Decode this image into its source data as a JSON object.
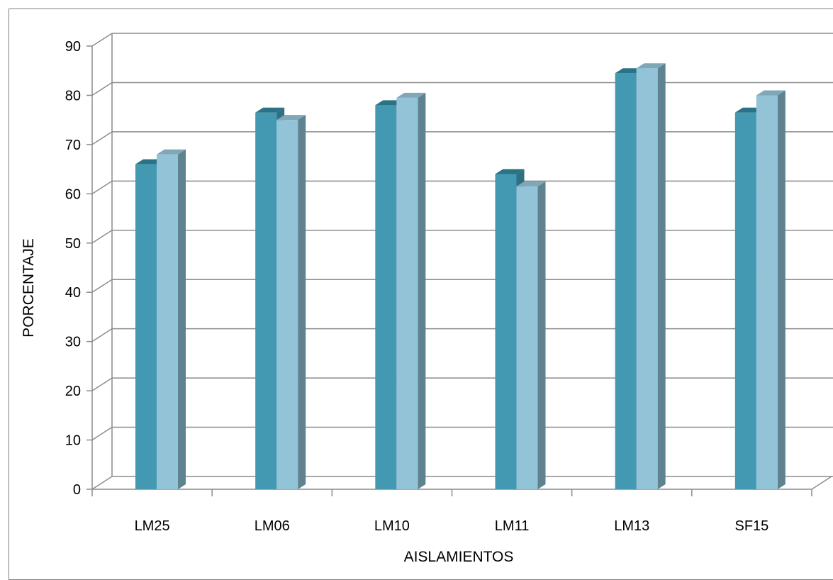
{
  "chart_data": {
    "type": "bar",
    "title": "",
    "xlabel": "AISLAMIENTOS",
    "ylabel": "PORCENTAJE",
    "categories": [
      "LM25",
      "LM06",
      "LM10",
      "LM11",
      "LM13",
      "SF15"
    ],
    "series": [
      {
        "values": [
          66,
          76.5,
          78,
          64,
          84.5,
          76.5
        ],
        "color": "#4299b1",
        "side_color": "#2e6f82",
        "top_color": "#2a7386"
      },
      {
        "values": [
          68,
          75,
          79.5,
          61.5,
          85.5,
          80
        ],
        "color": "#93c3d6",
        "side_color": "#5f8290",
        "top_color": "#7fa7b8"
      }
    ],
    "ylim": [
      0,
      90
    ],
    "yticks": [
      0,
      10,
      20,
      30,
      40,
      50,
      60,
      70,
      80,
      90
    ],
    "grid": true,
    "style": "3d-clustered-column"
  }
}
